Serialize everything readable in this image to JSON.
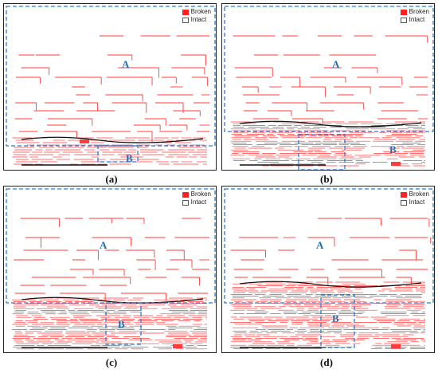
{
  "legend": {
    "broken": "Broken",
    "intact": "Intact",
    "broken_color": "#ff2020"
  },
  "zones": {
    "a": "A",
    "b": "B"
  },
  "captions": [
    "(a)",
    "(b)",
    "(c)",
    "(d)"
  ],
  "colors": {
    "crack": "#ff3b3b",
    "zone_box": "#2b7bd0",
    "intact_line": "#111111"
  }
}
